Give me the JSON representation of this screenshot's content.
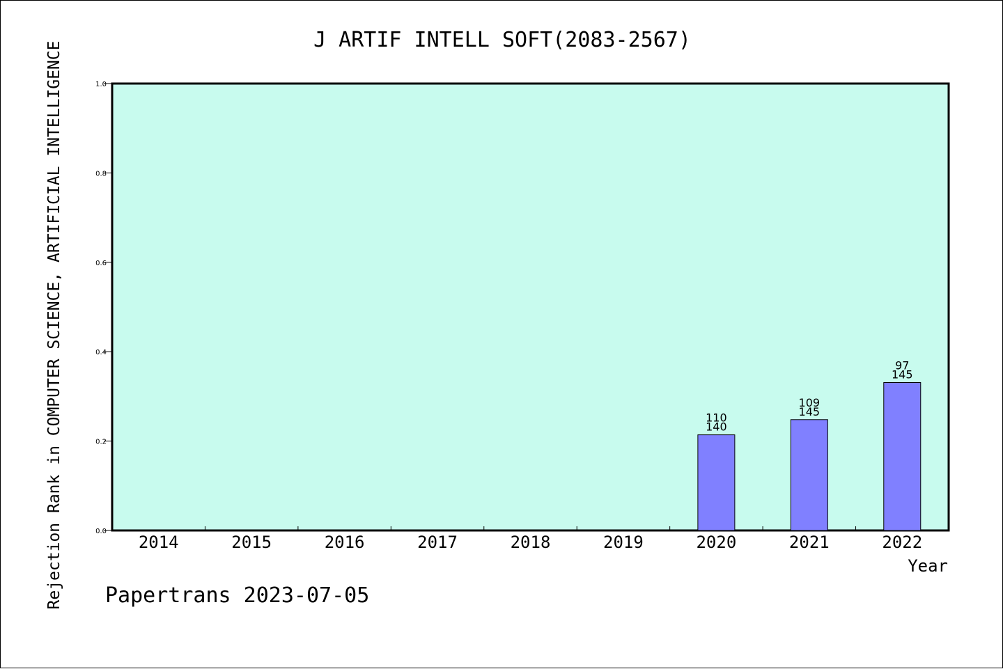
{
  "chart_data": {
    "type": "bar",
    "title": "J ARTIF INTELL SOFT(2083-2567)",
    "xlabel": "Year",
    "ylabel": "Rejection Rank in COMPUTER SCIENCE, ARTIFICIAL INTELLIGENCE",
    "categories": [
      "2014",
      "2015",
      "2016",
      "2017",
      "2018",
      "2019",
      "2020",
      "2021",
      "2022"
    ],
    "values": [
      null,
      null,
      null,
      null,
      null,
      null,
      0.214,
      0.248,
      0.331
    ],
    "annotations": [
      null,
      null,
      null,
      null,
      null,
      null,
      {
        "rank": "110",
        "total": "140"
      },
      {
        "rank": "109",
        "total": "145"
      },
      {
        "rank": "97",
        "total": "145"
      }
    ],
    "ylim": [
      0,
      1.0
    ],
    "yticks": [
      "0.0",
      "0.2",
      "0.4",
      "0.6",
      "0.8",
      "1.0"
    ],
    "grid": false,
    "colors": {
      "plot_background": "#c8fbee",
      "bar_fill": "#8080ff",
      "bar_stroke": "#000000"
    }
  },
  "footer": "Papertrans 2023-07-05"
}
